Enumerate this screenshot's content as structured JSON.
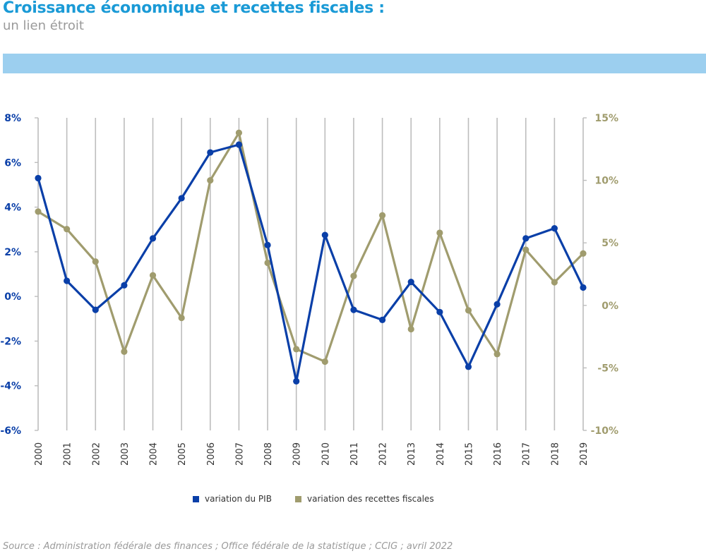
{
  "header": {
    "title": "Croissance économique et recettes fiscales :",
    "subtitle": "un lien étroit"
  },
  "footer": {
    "source": "Source : Administration fédérale des finances ; Office fédérale de la statistique ; CCIG ; avril 2022"
  },
  "colors": {
    "title": "#1a9ad6",
    "band": "#9ccfef",
    "pib": "#0a3fa8",
    "recettes": "#a09c6e",
    "grid": "#bdbdbd"
  },
  "chart_data": {
    "type": "line",
    "title": "Croissance économique et recettes fiscales : un lien étroit",
    "x": [
      "2000",
      "2001",
      "2002",
      "2003",
      "2004",
      "2005",
      "2006",
      "2007",
      "2008",
      "2009",
      "2010",
      "2011",
      "2012",
      "2013",
      "2014",
      "2015",
      "2016",
      "2017",
      "2018",
      "2019"
    ],
    "left_axis": {
      "ylim": [
        -6,
        8
      ],
      "ticks": [
        8,
        6,
        4,
        2,
        0,
        -2,
        -4,
        -6
      ],
      "tick_labels": [
        "8%",
        "6%",
        "4%",
        "2%",
        "0%",
        "-2%",
        "-4%",
        "-6%"
      ]
    },
    "right_axis": {
      "ylim": [
        -10,
        15
      ],
      "ticks": [
        15,
        10,
        5,
        0,
        -5,
        -10
      ],
      "tick_labels": [
        "15%",
        "10%",
        "5%",
        "0%",
        "-5%",
        "-10%"
      ]
    },
    "grid": "vertical",
    "legend_position": "bottom-center",
    "series": [
      {
        "name": "variation du PIB",
        "axis": "left",
        "color": "#0a3fa8",
        "values": [
          5.3,
          0.7,
          -0.6,
          0.5,
          2.6,
          4.4,
          6.45,
          6.8,
          2.3,
          -3.8,
          2.75,
          -0.6,
          -1.05,
          0.65,
          -0.7,
          -3.15,
          -0.35,
          2.6,
          3.05,
          0.4
        ]
      },
      {
        "name": "variation des recettes fiscales",
        "axis": "right",
        "color": "#a09c6e",
        "values": [
          7.5,
          6.1,
          3.5,
          -3.7,
          2.4,
          -1.0,
          10.0,
          13.8,
          3.4,
          -3.5,
          -4.5,
          2.35,
          7.2,
          -1.9,
          5.8,
          -0.4,
          -3.9,
          4.45,
          1.85,
          4.15
        ]
      }
    ]
  }
}
